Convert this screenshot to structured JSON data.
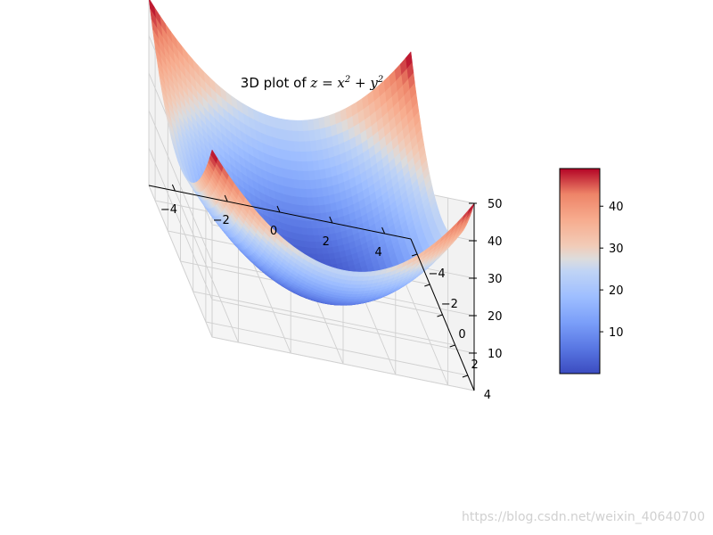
{
  "chart_data": {
    "type": "surface",
    "title_prefix": "3D plot of ",
    "title_math": {
      "lhs": "z",
      "x": "x",
      "y": "y",
      "exp": "2"
    },
    "function": "z = x^2 + y^2",
    "xlim": [
      -5,
      5
    ],
    "ylim": [
      -5,
      5
    ],
    "zlim": [
      0,
      50
    ],
    "x_ticks": [
      -4,
      -2,
      0,
      2,
      4
    ],
    "y_ticks": [
      -4,
      -2,
      0,
      2,
      4
    ],
    "z_ticks": [
      10,
      20,
      30,
      40,
      50
    ],
    "colormap": "coolwarm",
    "colorbar": {
      "range": [
        0,
        49
      ],
      "ticks": [
        10,
        20,
        30,
        40
      ]
    },
    "grid": true
  },
  "watermark": "https://blog.csdn.net/weixin_40640700",
  "colors": {
    "cold": "#3b4cc0",
    "neutral": "#dddddd",
    "warm": "#b40426"
  }
}
